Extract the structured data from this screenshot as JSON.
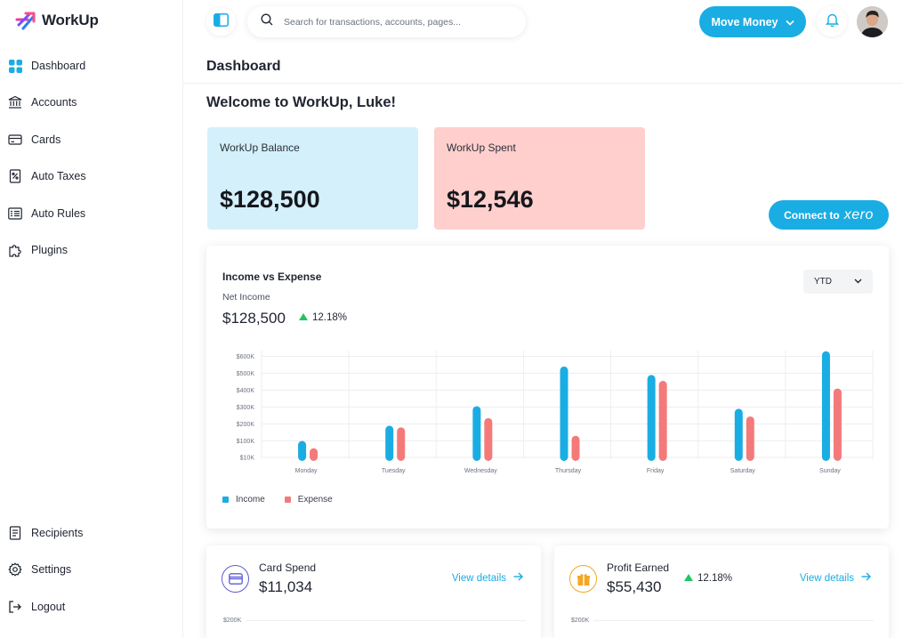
{
  "app": {
    "name": "WorkUp"
  },
  "sidebar": {
    "items": [
      {
        "label": "Dashboard",
        "icon": "dashboard-grid-icon"
      },
      {
        "label": "Accounts",
        "icon": "bank-icon"
      },
      {
        "label": "Cards",
        "icon": "card-icon"
      },
      {
        "label": "Auto Taxes",
        "icon": "tax-receipt-icon"
      },
      {
        "label": "Auto Rules",
        "icon": "rules-list-icon"
      },
      {
        "label": "Plugins",
        "icon": "puzzle-icon"
      }
    ],
    "bottom_items": [
      {
        "label": "Recipients",
        "icon": "document-icon"
      },
      {
        "label": "Settings",
        "icon": "gear-icon"
      },
      {
        "label": "Logout",
        "icon": "logout-icon"
      }
    ]
  },
  "topbar": {
    "search_placeholder": "Search for transactions, accounts, pages...",
    "move_money_label": "Move Money"
  },
  "page": {
    "title": "Dashboard",
    "welcome": "Welcome to WorkUp, Luke!"
  },
  "balance_cards": [
    {
      "label": "WorkUp Balance",
      "value": "$128,500",
      "color": "#d4f0fb"
    },
    {
      "label": "WorkUp Spent",
      "value": "$12,546",
      "color": "#ffcfcd"
    }
  ],
  "connect": {
    "label": "Connect to",
    "brand": "xero"
  },
  "income_chart": {
    "title": "Income vs Expense",
    "net_label": "Net Income",
    "net_value": "$128,500",
    "change": "12.18%",
    "period": "YTD",
    "legend": [
      "Income",
      "Expense"
    ]
  },
  "chart_data": {
    "type": "bar",
    "categories": [
      "Monday",
      "Tuesday",
      "Wednesday",
      "Thursday",
      "Friday",
      "Saturday",
      "Sunday"
    ],
    "y_ticks": [
      "$10K",
      "$100K",
      "$200K",
      "$300K",
      "$400K",
      "$500K",
      "$600K"
    ],
    "series": [
      {
        "name": "Income",
        "color": "#1aade4",
        "values": [
          100,
          190,
          305,
          540,
          490,
          290,
          630
        ]
      },
      {
        "name": "Expense",
        "color": "#f47a7a",
        "values": [
          60,
          180,
          235,
          130,
          455,
          245,
          410
        ]
      }
    ]
  },
  "card_spend": {
    "title": "Card Spend",
    "value": "$11,034",
    "link": "View details",
    "axis_label": "$200K"
  },
  "profit_earned": {
    "title": "Profit Earned",
    "value": "$55,430",
    "change": "12.18%",
    "link": "View details",
    "axis_label": "$200K"
  },
  "colors": {
    "accent": "#1aade4",
    "positive": "#22c55e"
  }
}
